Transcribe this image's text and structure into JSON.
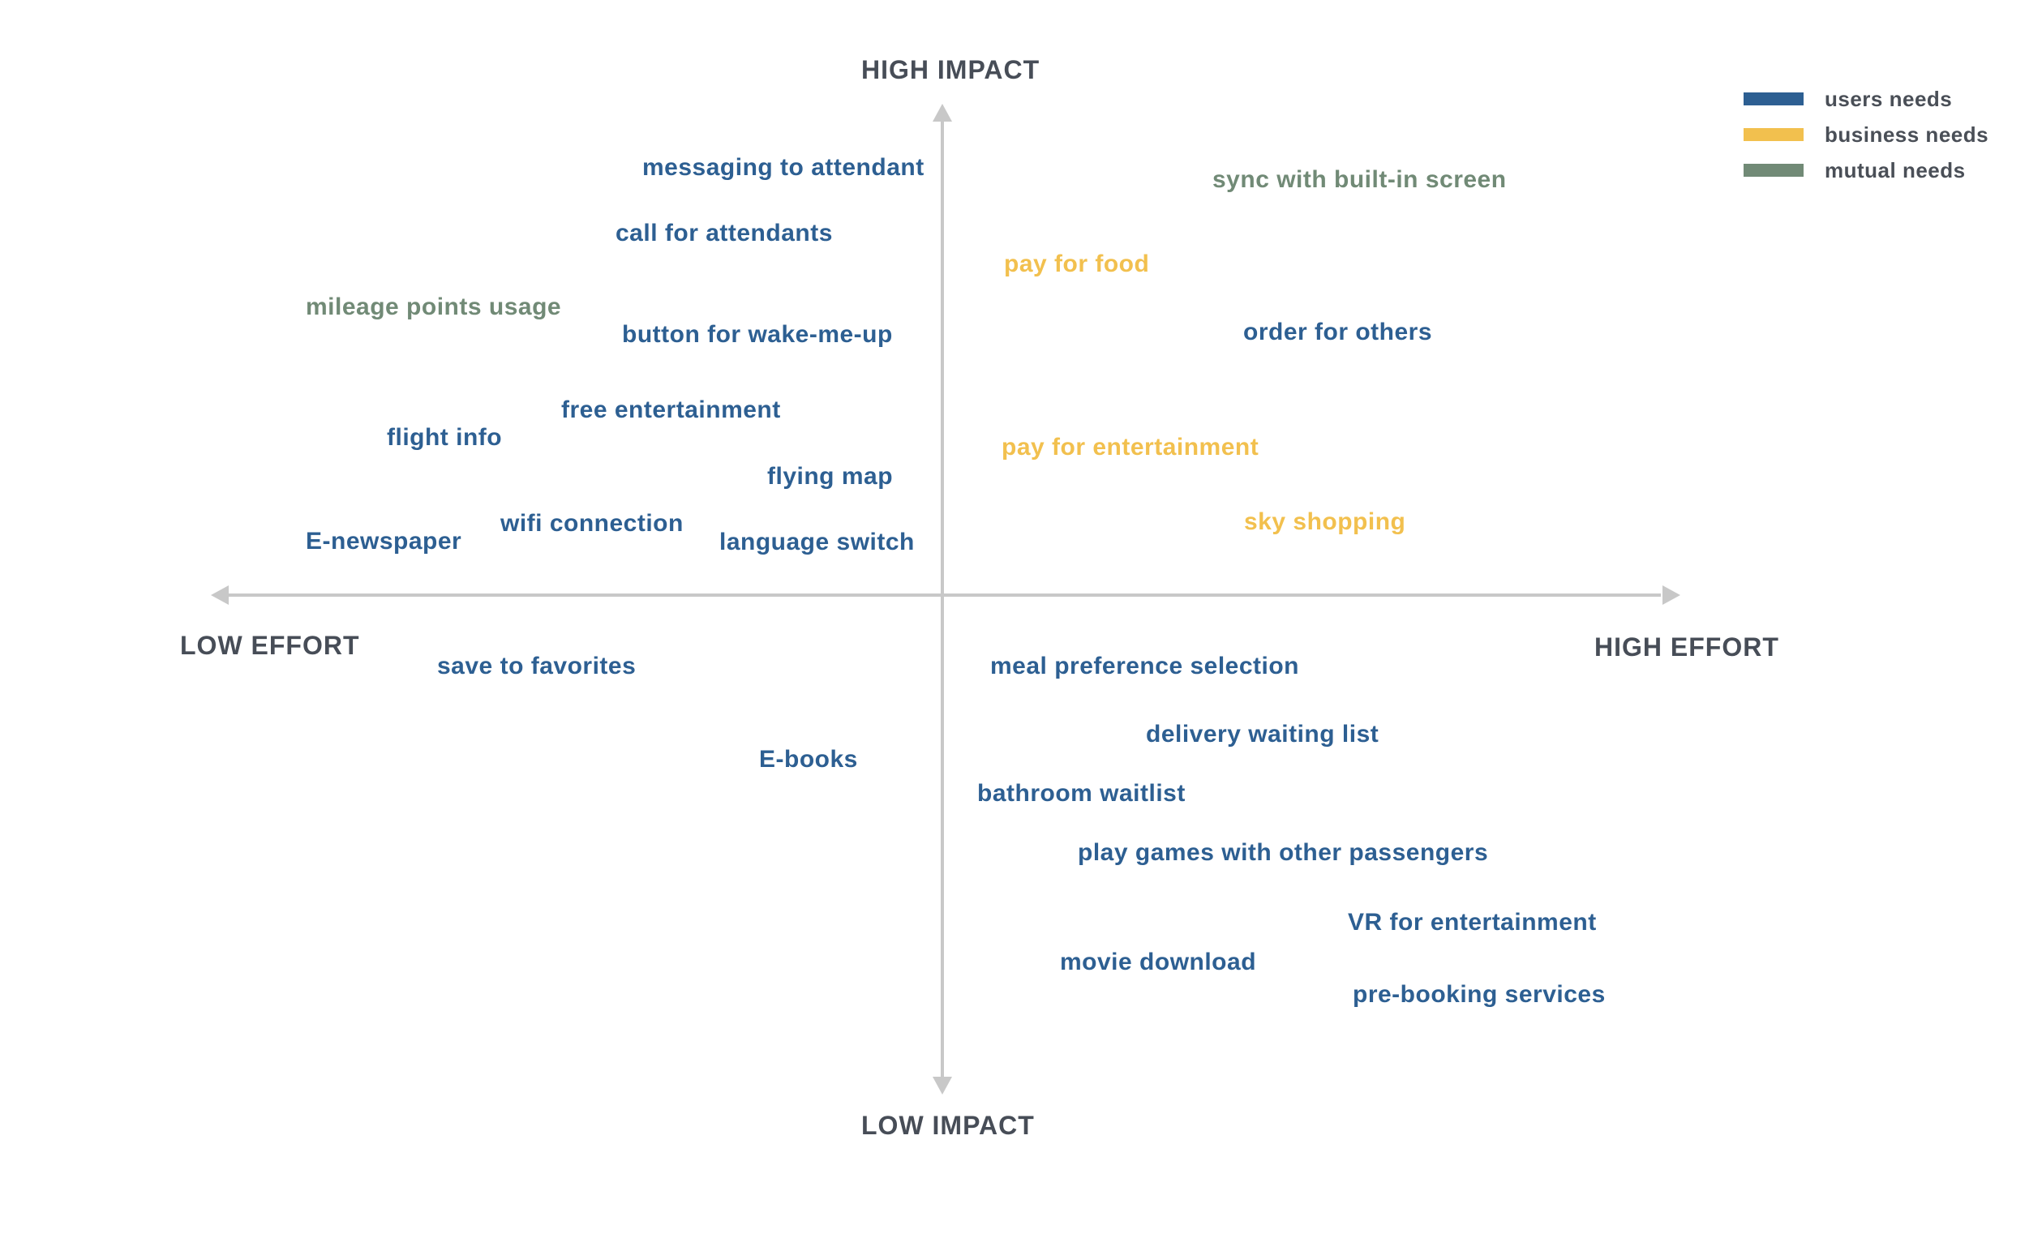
{
  "colors": {
    "users": "#2d5f92",
    "business": "#f2c04e",
    "mutual": "#718a76",
    "axis": "#c8c8c8"
  },
  "axes": {
    "top": "HIGH IMPACT",
    "bottom": "LOW IMPACT",
    "left": "LOW EFFORT",
    "right": "HIGH EFFORT"
  },
  "legend": [
    {
      "label": "users needs",
      "type": "users"
    },
    {
      "label": "business needs",
      "type": "business"
    },
    {
      "label": "mutual needs",
      "type": "mutual"
    }
  ],
  "items": [
    {
      "text": "messaging to attendant",
      "type": "users"
    },
    {
      "text": "call for attendants",
      "type": "users"
    },
    {
      "text": "mileage points usage",
      "type": "mutual"
    },
    {
      "text": "button for wake-me-up",
      "type": "users"
    },
    {
      "text": "free entertainment",
      "type": "users"
    },
    {
      "text": "flight info",
      "type": "users"
    },
    {
      "text": "flying map",
      "type": "users"
    },
    {
      "text": "wifi connection",
      "type": "users"
    },
    {
      "text": "E-newspaper",
      "type": "users"
    },
    {
      "text": "language switch",
      "type": "users"
    },
    {
      "text": "sync with built-in screen",
      "type": "mutual"
    },
    {
      "text": "pay for food",
      "type": "business"
    },
    {
      "text": "order for others",
      "type": "users"
    },
    {
      "text": "pay for entertainment",
      "type": "business"
    },
    {
      "text": "sky shopping",
      "type": "business"
    },
    {
      "text": "save to favorites",
      "type": "users"
    },
    {
      "text": "E-books",
      "type": "users"
    },
    {
      "text": "meal preference selection",
      "type": "users"
    },
    {
      "text": "delivery waiting list",
      "type": "users"
    },
    {
      "text": "bathroom waitlist",
      "type": "users"
    },
    {
      "text": "play games with other passengers",
      "type": "users"
    },
    {
      "text": "VR for entertainment",
      "type": "users"
    },
    {
      "text": "movie download",
      "type": "users"
    },
    {
      "text": "pre-booking services",
      "type": "users"
    }
  ]
}
